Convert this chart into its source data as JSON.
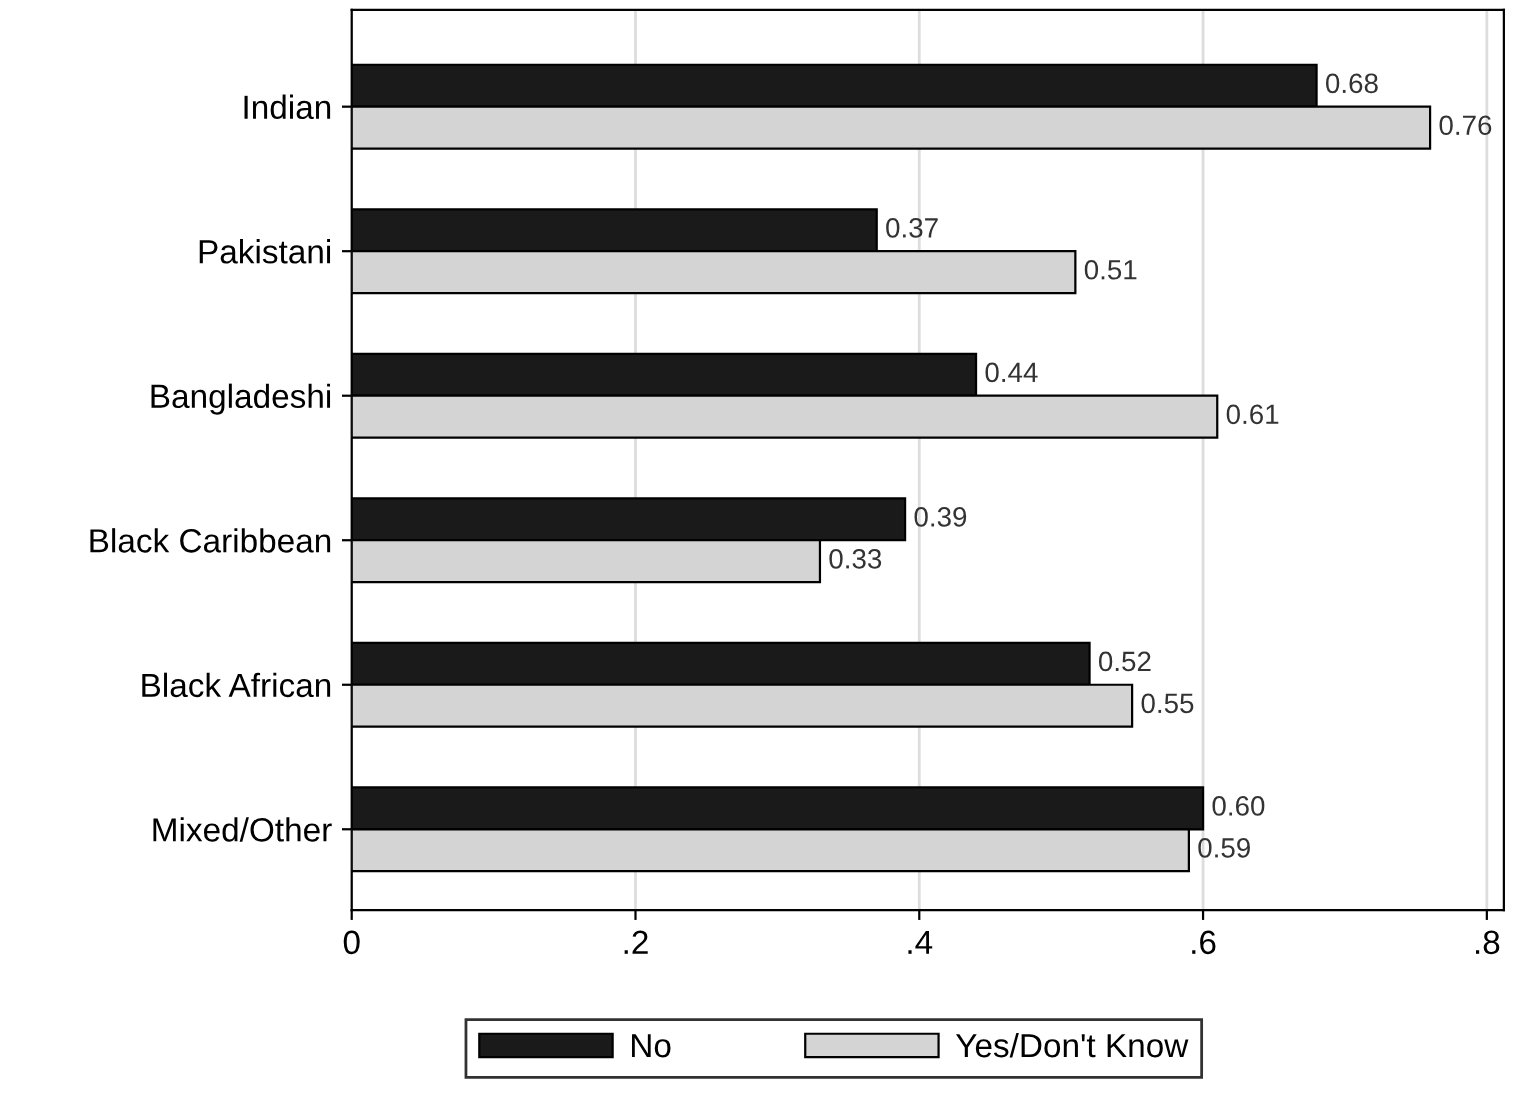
{
  "chart_data": {
    "type": "bar",
    "orientation": "horizontal",
    "categories": [
      "Indian",
      "Pakistani",
      "Bangladeshi",
      "Black Caribbean",
      "Black African",
      "Mixed/Other"
    ],
    "series": [
      {
        "name": "No",
        "color": "#1a1a1a",
        "values": [
          0.68,
          0.37,
          0.44,
          0.39,
          0.52,
          0.6
        ],
        "value_labels": [
          "0.68",
          "0.37",
          "0.44",
          "0.39",
          "0.52",
          "0.60"
        ]
      },
      {
        "name": "Yes/Don't Know",
        "color": "#d4d4d4",
        "values": [
          0.76,
          0.51,
          0.61,
          0.33,
          0.55,
          0.59
        ],
        "value_labels": [
          "0.76",
          "0.51",
          "0.61",
          "0.33",
          "0.55",
          "0.59"
        ]
      }
    ],
    "xlim": [
      0,
      0.812
    ],
    "xticks": [
      0,
      {
        "value": 0.2,
        "label": ".2"
      },
      {
        "value": 0.4,
        "label": ".4"
      },
      {
        "value": 0.6,
        "label": ".6"
      },
      {
        "value": 0.8,
        "label": ".8"
      }
    ],
    "grid": "x",
    "legend": "bottom"
  }
}
